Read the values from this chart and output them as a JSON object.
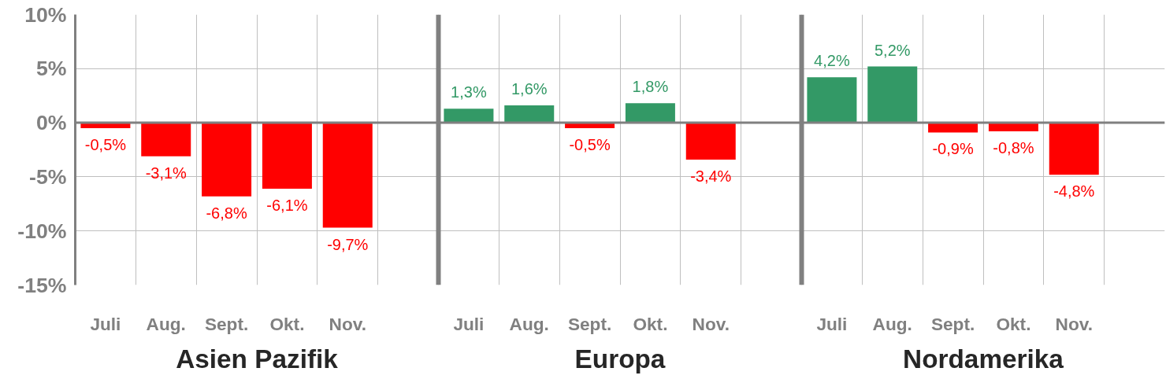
{
  "chart_data": {
    "type": "bar",
    "categories": [
      "Juli",
      "Aug.",
      "Sept.",
      "Okt.",
      "Nov.",
      null,
      "Juli",
      "Aug.",
      "Sept.",
      "Okt.",
      "Nov.",
      null,
      "Juli",
      "Aug.",
      "Sept.",
      "Okt.",
      "Nov.",
      null
    ],
    "values": [
      -0.5,
      -3.1,
      -6.8,
      -6.1,
      -9.7,
      null,
      1.3,
      1.6,
      -0.5,
      1.8,
      -3.4,
      null,
      4.2,
      5.2,
      -0.9,
      -0.8,
      -4.8,
      null
    ],
    "colors": [
      "#ff0000",
      "#ff0000",
      "#ff0000",
      "#ff0000",
      "#ff0000",
      null,
      "#339966",
      "#339966",
      "#ff0000",
      "#339966",
      "#ff0000",
      null,
      "#339966",
      "#339966",
      "#ff0000",
      "#ff0000",
      "#ff0000",
      null
    ],
    "value_labels": [
      "-0,5%",
      "-3,1%",
      "-6,8%",
      "-6,1%",
      "-9,7%",
      null,
      "1,3%",
      "1,6%",
      "-0,5%",
      "1,8%",
      "-3,4%",
      null,
      "4,2%",
      "5,2%",
      "-0,9%",
      "-0,8%",
      "-4,8%",
      null
    ],
    "annotations": [
      "Asien Pazifik",
      "Europa",
      "Nordamerika"
    ],
    "ylim": [
      -15,
      10
    ],
    "yticks": [
      {
        "value": -15,
        "label": "-15%"
      },
      {
        "value": -10,
        "label": "-10%"
      },
      {
        "value": -5,
        "label": "-5%"
      },
      {
        "value": 0,
        "label": "0%"
      },
      {
        "value": 5,
        "label": "5%"
      },
      {
        "value": 10,
        "label": "10%"
      }
    ],
    "grid": true
  }
}
